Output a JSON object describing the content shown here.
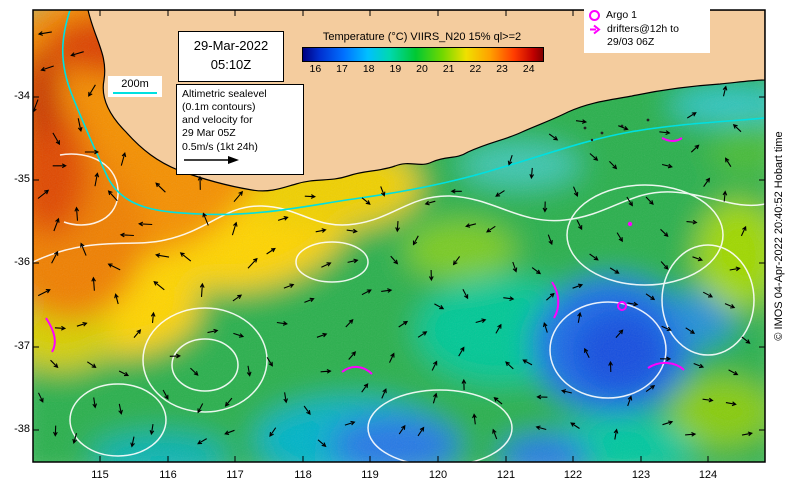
{
  "title_box": {
    "date": "29-Mar-2022",
    "time": "05:10Z"
  },
  "colorbar": {
    "title": "Temperature (°C) VIIRS_N20 15% ql>=2",
    "ticks": [
      "16",
      "17",
      "18",
      "19",
      "20",
      "21",
      "22",
      "23",
      "24"
    ]
  },
  "legend": {
    "argo": "Argo 1",
    "drifters_line1": "drifters@12h to",
    "drifters_line2": "29/03 06Z"
  },
  "info_box": {
    "line1": "Altimetric sealevel",
    "line2": "(0.1m contours)",
    "line3": "and velocity for",
    "line4": "29 Mar 05Z",
    "line5": "0.5m/s (1kt 24h)"
  },
  "bathymetry_label": "200m",
  "axes": {
    "lat_ticks": [
      "-34",
      "-35",
      "-36",
      "-37",
      "-38"
    ],
    "lon_ticks": [
      "115",
      "116",
      "117",
      "118",
      "119",
      "120",
      "121",
      "122",
      "123",
      "124"
    ]
  },
  "copyright": "© IMOS 04-Apr-2022 20:40:52 Hobart time",
  "colors": {
    "land": "#f4cc9e",
    "drifter_track": "#ff00ff",
    "bathymetry_contour": "#00e0e0",
    "ssh_contour": "#ffffff"
  }
}
